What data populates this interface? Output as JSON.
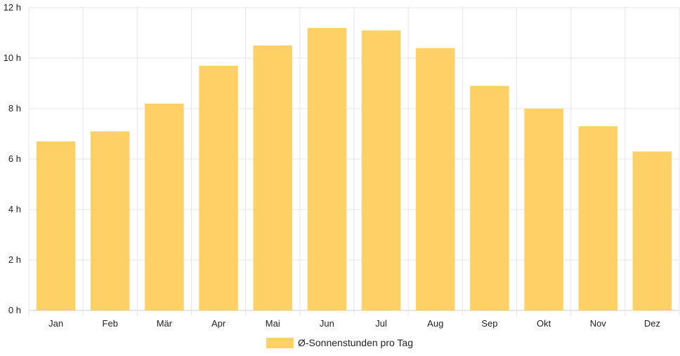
{
  "chart_data": {
    "type": "bar",
    "categories": [
      "Jan",
      "Feb",
      "Mär",
      "Apr",
      "Mai",
      "Jun",
      "Jul",
      "Aug",
      "Sep",
      "Okt",
      "Nov",
      "Dez"
    ],
    "series": [
      {
        "name": "Ø-Sonnenstunden pro Tag",
        "values": [
          6.7,
          7.1,
          8.2,
          9.7,
          10.5,
          11.2,
          11.1,
          10.4,
          8.9,
          8.0,
          7.3,
          6.3
        ]
      }
    ],
    "y_ticks": [
      "0 h",
      "2 h",
      "4 h",
      "6 h",
      "8 h",
      "10 h",
      "12 h"
    ],
    "ylim": [
      0,
      12
    ],
    "grid": true,
    "legend_position": "bottom",
    "colors": {
      "bar": "#fed166",
      "grid": "#e6e6e6",
      "axis": "#cccccc",
      "text": "#222222"
    }
  }
}
